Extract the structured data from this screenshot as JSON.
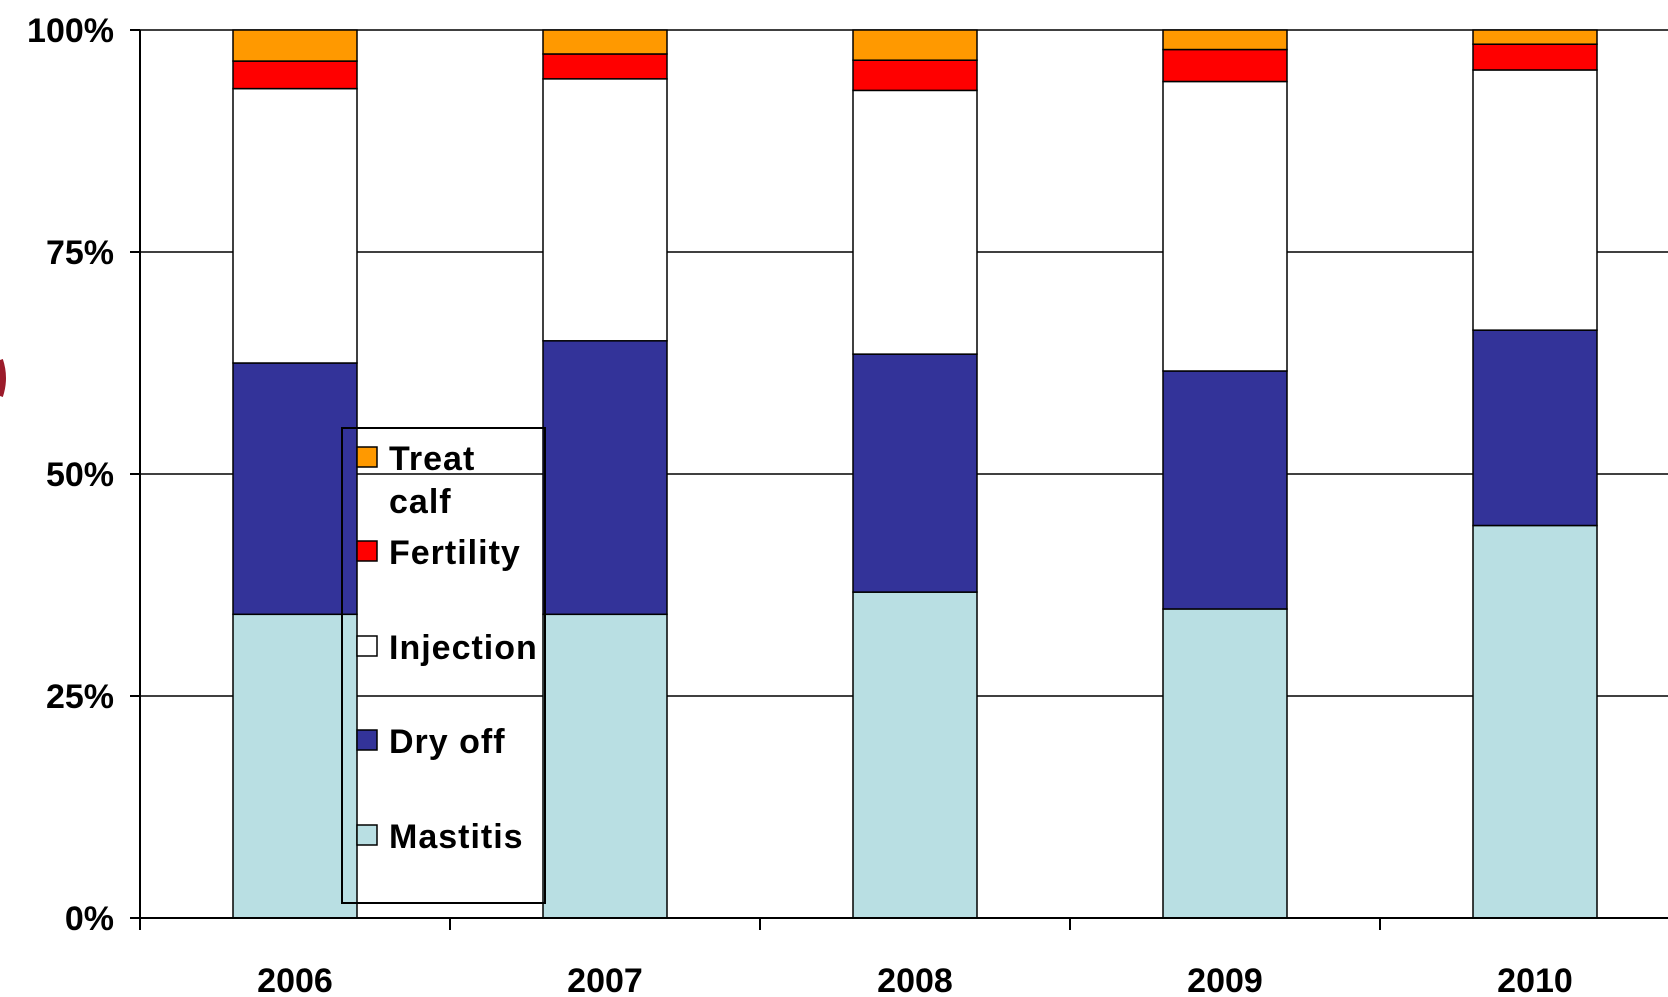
{
  "chart_data": {
    "type": "bar",
    "stacked": true,
    "percent": true,
    "categories": [
      "2006",
      "2007",
      "2008",
      "2009",
      "2010"
    ],
    "series": [
      {
        "name": "Mastitis",
        "color": "#b9dfe3",
        "values": [
          34.2,
          34.2,
          36.7,
          34.8,
          44.2
        ]
      },
      {
        "name": "Dry off",
        "color": "#333399",
        "values": [
          28.3,
          30.8,
          26.8,
          26.8,
          22.0
        ]
      },
      {
        "name": "Injection",
        "color": "#ffffff",
        "values": [
          30.9,
          29.5,
          29.7,
          32.6,
          29.3
        ]
      },
      {
        "name": "Fertility",
        "color": "#ff0000",
        "values": [
          3.1,
          2.8,
          3.4,
          3.6,
          2.9
        ]
      },
      {
        "name": "Treat calf",
        "color": "#ff9900",
        "values": [
          3.5,
          2.7,
          3.4,
          2.2,
          1.6
        ]
      }
    ],
    "y_ticks": [
      "0%",
      "25%",
      "50%",
      "75%",
      "100%"
    ],
    "ylim": [
      0,
      100
    ],
    "grid": true,
    "legend_position": "overlay-left",
    "legend_order": [
      "Treat calf",
      "Fertility",
      "Injection",
      "Dry off",
      "Mastitis"
    ],
    "title": "",
    "xlabel": "",
    "ylabel": ""
  }
}
